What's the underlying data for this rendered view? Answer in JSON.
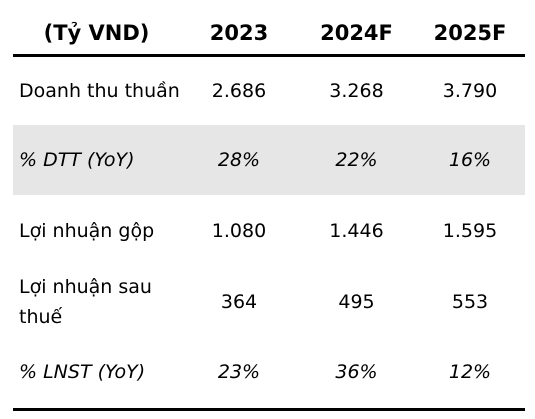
{
  "table": {
    "headers": [
      "(Tỷ VND)",
      "2023",
      "2024F",
      "2025F"
    ],
    "rows": [
      {
        "label": "Doanh thu thuần",
        "values": [
          "2.686",
          "3.268",
          "3.790"
        ]
      },
      {
        "label": "% DTT (YoY)",
        "values": [
          "28%",
          "22%",
          "16%"
        ]
      },
      {
        "label": "Lợi nhuận gộp",
        "values": [
          "1.080",
          "1.446",
          "1.595"
        ]
      },
      {
        "label": "Lợi nhuận sau thuế",
        "values": [
          "364",
          "495",
          "553"
        ]
      },
      {
        "label": "% LNST (YoY)",
        "values": [
          "23%",
          "36%",
          "12%"
        ]
      }
    ]
  }
}
